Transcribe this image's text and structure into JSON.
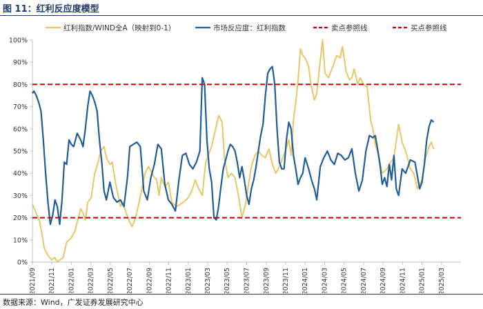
{
  "figure": {
    "title": "图 11：红利反应度模型",
    "source": "数据来源：Wind，广发证券发展研究中心"
  },
  "colors": {
    "dividend_line": "#e8c668",
    "reaction_line": "#1f5c99",
    "reference_lines": "#c00000",
    "axis": "#bfbfbf",
    "text": "#333333"
  },
  "chart_data": {
    "type": "line",
    "title": "",
    "xlabel": "",
    "ylabel": "",
    "ylim": [
      0,
      100
    ],
    "y_ticks": [
      0,
      10,
      20,
      30,
      40,
      50,
      60,
      70,
      80,
      90,
      100
    ],
    "y_tick_labels": [
      "0%",
      "10%",
      "20%",
      "30%",
      "40%",
      "50%",
      "60%",
      "70%",
      "80%",
      "90%",
      "100%"
    ],
    "x_range": [
      2021.667,
      2025.333
    ],
    "x_ticks": [
      2021.667,
      2021.833,
      2022.0,
      2022.167,
      2022.333,
      2022.5,
      2022.667,
      2022.833,
      2023.0,
      2023.167,
      2023.333,
      2023.5,
      2023.667,
      2023.833,
      2024.0,
      2024.167,
      2024.333,
      2024.5,
      2024.667,
      2024.833,
      2025.0,
      2025.167
    ],
    "x_tick_labels": [
      "2021/09",
      "2021/11",
      "2022/01",
      "2022/03",
      "2022/05",
      "2022/07",
      "2022/09",
      "2022/11",
      "2023/01",
      "2023/03",
      "2023/05",
      "2023/07",
      "2023/09",
      "2023/11",
      "2024/01",
      "2024/03",
      "2024/05",
      "2024/07",
      "2024/09",
      "2024/11",
      "2025/01",
      "2025/03"
    ],
    "legend_position": "top",
    "series": [
      {
        "name": "红利指数/WIND全A（映射到0-1）",
        "color": "#e8c668",
        "points": [
          [
            2021.667,
            26
          ],
          [
            2021.7,
            22
          ],
          [
            2021.73,
            18
          ],
          [
            2021.75,
            12
          ],
          [
            2021.77,
            6
          ],
          [
            2021.8,
            3
          ],
          [
            2021.83,
            1
          ],
          [
            2021.86,
            2
          ],
          [
            2021.88,
            0
          ],
          [
            2021.9,
            1
          ],
          [
            2021.93,
            2
          ],
          [
            2021.96,
            9
          ],
          [
            2022.0,
            11
          ],
          [
            2022.03,
            14
          ],
          [
            2022.06,
            20
          ],
          [
            2022.08,
            24
          ],
          [
            2022.1,
            22
          ],
          [
            2022.12,
            19
          ],
          [
            2022.14,
            27
          ],
          [
            2022.17,
            29
          ],
          [
            2022.2,
            40
          ],
          [
            2022.23,
            45
          ],
          [
            2022.25,
            50
          ],
          [
            2022.28,
            52
          ],
          [
            2022.3,
            47
          ],
          [
            2022.33,
            44
          ],
          [
            2022.35,
            45
          ],
          [
            2022.38,
            35
          ],
          [
            2022.4,
            30
          ],
          [
            2022.42,
            25
          ],
          [
            2022.44,
            27
          ],
          [
            2022.47,
            22
          ],
          [
            2022.5,
            18
          ],
          [
            2022.52,
            16
          ],
          [
            2022.55,
            20
          ],
          [
            2022.58,
            27
          ],
          [
            2022.6,
            32
          ],
          [
            2022.63,
            40
          ],
          [
            2022.66,
            43
          ],
          [
            2022.7,
            39
          ],
          [
            2022.73,
            37
          ],
          [
            2022.75,
            30
          ],
          [
            2022.77,
            38
          ],
          [
            2022.8,
            34
          ],
          [
            2022.83,
            36
          ],
          [
            2022.86,
            27
          ],
          [
            2022.9,
            25
          ],
          [
            2022.93,
            26
          ],
          [
            2022.96,
            27
          ],
          [
            2023.0,
            29
          ],
          [
            2023.03,
            32
          ],
          [
            2023.06,
            37
          ],
          [
            2023.09,
            33
          ],
          [
            2023.12,
            30
          ],
          [
            2023.15,
            45
          ],
          [
            2023.17,
            48
          ],
          [
            2023.2,
            52
          ],
          [
            2023.23,
            59
          ],
          [
            2023.26,
            66
          ],
          [
            2023.29,
            63
          ],
          [
            2023.31,
            47
          ],
          [
            2023.34,
            38
          ],
          [
            2023.37,
            40
          ],
          [
            2023.4,
            38
          ],
          [
            2023.43,
            30
          ],
          [
            2023.46,
            20
          ],
          [
            2023.49,
            26
          ],
          [
            2023.51,
            33
          ],
          [
            2023.54,
            43
          ],
          [
            2023.57,
            48
          ],
          [
            2023.6,
            50
          ],
          [
            2023.63,
            48
          ],
          [
            2023.66,
            47
          ],
          [
            2023.69,
            51
          ],
          [
            2023.72,
            44
          ],
          [
            2023.75,
            40
          ],
          [
            2023.78,
            43
          ],
          [
            2023.81,
            47
          ],
          [
            2023.83,
            50
          ],
          [
            2023.86,
            55
          ],
          [
            2023.88,
            48
          ],
          [
            2023.9,
            64
          ],
          [
            2023.92,
            72
          ],
          [
            2023.94,
            82
          ],
          [
            2023.96,
            96
          ],
          [
            2023.98,
            93
          ],
          [
            2024.0,
            92
          ],
          [
            2024.03,
            88
          ],
          [
            2024.05,
            80
          ],
          [
            2024.08,
            73
          ],
          [
            2024.1,
            76
          ],
          [
            2024.12,
            86
          ],
          [
            2024.15,
            100
          ],
          [
            2024.17,
            85
          ],
          [
            2024.2,
            83
          ],
          [
            2024.23,
            87
          ],
          [
            2024.25,
            90
          ],
          [
            2024.27,
            93
          ],
          [
            2024.3,
            92
          ],
          [
            2024.32,
            97
          ],
          [
            2024.35,
            86
          ],
          [
            2024.38,
            82
          ],
          [
            2024.4,
            83
          ],
          [
            2024.42,
            87
          ],
          [
            2024.45,
            80
          ],
          [
            2024.47,
            83
          ],
          [
            2024.5,
            80
          ],
          [
            2024.53,
            79
          ],
          [
            2024.56,
            64
          ],
          [
            2024.58,
            60
          ],
          [
            2024.6,
            53
          ],
          [
            2024.63,
            48
          ],
          [
            2024.66,
            40
          ],
          [
            2024.7,
            42
          ],
          [
            2024.73,
            45
          ],
          [
            2024.76,
            47
          ],
          [
            2024.8,
            62
          ],
          [
            2024.83,
            54
          ],
          [
            2024.86,
            50
          ],
          [
            2024.9,
            42
          ],
          [
            2024.93,
            40
          ],
          [
            2024.96,
            33
          ],
          [
            2025.0,
            37
          ],
          [
            2025.03,
            47
          ],
          [
            2025.06,
            52
          ],
          [
            2025.08,
            54
          ],
          [
            2025.1,
            51
          ]
        ]
      },
      {
        "name": "市场反应度：红利指数",
        "color": "#1f5c99",
        "points": [
          [
            2021.667,
            76
          ],
          [
            2021.68,
            77
          ],
          [
            2021.7,
            75
          ],
          [
            2021.72,
            72
          ],
          [
            2021.74,
            68
          ],
          [
            2021.76,
            55
          ],
          [
            2021.78,
            40
          ],
          [
            2021.8,
            27
          ],
          [
            2021.82,
            17
          ],
          [
            2021.84,
            21
          ],
          [
            2021.86,
            28
          ],
          [
            2021.88,
            25
          ],
          [
            2021.9,
            17
          ],
          [
            2021.92,
            28
          ],
          [
            2021.94,
            45
          ],
          [
            2021.96,
            44
          ],
          [
            2021.98,
            55
          ],
          [
            2022.0,
            53
          ],
          [
            2022.02,
            52
          ],
          [
            2022.05,
            58
          ],
          [
            2022.08,
            55
          ],
          [
            2022.1,
            52
          ],
          [
            2022.12,
            60
          ],
          [
            2022.14,
            70
          ],
          [
            2022.16,
            77
          ],
          [
            2022.18,
            75
          ],
          [
            2022.2,
            72
          ],
          [
            2022.22,
            68
          ],
          [
            2022.24,
            55
          ],
          [
            2022.26,
            45
          ],
          [
            2022.28,
            32
          ],
          [
            2022.3,
            28
          ],
          [
            2022.33,
            36
          ],
          [
            2022.36,
            29
          ],
          [
            2022.39,
            27
          ],
          [
            2022.42,
            28
          ],
          [
            2022.45,
            25
          ],
          [
            2022.48,
            38
          ],
          [
            2022.5,
            52
          ],
          [
            2022.53,
            53
          ],
          [
            2022.56,
            54
          ],
          [
            2022.59,
            52
          ],
          [
            2022.62,
            32
          ],
          [
            2022.65,
            28
          ],
          [
            2022.68,
            38
          ],
          [
            2022.71,
            44
          ],
          [
            2022.74,
            53
          ],
          [
            2022.77,
            51
          ],
          [
            2022.8,
            35
          ],
          [
            2022.83,
            28
          ],
          [
            2022.86,
            26
          ],
          [
            2022.89,
            23
          ],
          [
            2022.92,
            37
          ],
          [
            2022.95,
            48
          ],
          [
            2022.98,
            49
          ],
          [
            2023.01,
            44
          ],
          [
            2023.04,
            42
          ],
          [
            2023.07,
            45
          ],
          [
            2023.1,
            50
          ],
          [
            2023.12,
            83
          ],
          [
            2023.14,
            80
          ],
          [
            2023.16,
            55
          ],
          [
            2023.18,
            42
          ],
          [
            2023.2,
            36
          ],
          [
            2023.22,
            20
          ],
          [
            2023.24,
            19
          ],
          [
            2023.26,
            25
          ],
          [
            2023.28,
            34
          ],
          [
            2023.3,
            42
          ],
          [
            2023.32,
            46
          ],
          [
            2023.34,
            50
          ],
          [
            2023.36,
            53
          ],
          [
            2023.38,
            52
          ],
          [
            2023.4,
            50
          ],
          [
            2023.42,
            45
          ],
          [
            2023.44,
            38
          ],
          [
            2023.46,
            43
          ],
          [
            2023.48,
            37
          ],
          [
            2023.5,
            30
          ],
          [
            2023.52,
            26
          ],
          [
            2023.54,
            33
          ],
          [
            2023.56,
            37
          ],
          [
            2023.58,
            43
          ],
          [
            2023.6,
            50
          ],
          [
            2023.62,
            57
          ],
          [
            2023.64,
            62
          ],
          [
            2023.66,
            75
          ],
          [
            2023.68,
            85
          ],
          [
            2023.7,
            87
          ],
          [
            2023.72,
            88
          ],
          [
            2023.74,
            80
          ],
          [
            2023.76,
            60
          ],
          [
            2023.78,
            45
          ],
          [
            2023.8,
            42
          ],
          [
            2023.82,
            42
          ],
          [
            2023.84,
            55
          ],
          [
            2023.86,
            63
          ],
          [
            2023.88,
            60
          ],
          [
            2023.9,
            48
          ],
          [
            2023.92,
            42
          ],
          [
            2023.94,
            35
          ],
          [
            2023.96,
            38
          ],
          [
            2023.98,
            40
          ],
          [
            2024.0,
            47
          ],
          [
            2024.03,
            42
          ],
          [
            2024.06,
            36
          ],
          [
            2024.08,
            33
          ],
          [
            2024.1,
            28
          ],
          [
            2024.13,
            43
          ],
          [
            2024.16,
            47
          ],
          [
            2024.19,
            50
          ],
          [
            2024.22,
            46
          ],
          [
            2024.25,
            44
          ],
          [
            2024.28,
            49
          ],
          [
            2024.31,
            48
          ],
          [
            2024.34,
            46
          ],
          [
            2024.37,
            47
          ],
          [
            2024.4,
            51
          ],
          [
            2024.43,
            40
          ],
          [
            2024.46,
            32
          ],
          [
            2024.49,
            37
          ],
          [
            2024.52,
            50
          ],
          [
            2024.55,
            57
          ],
          [
            2024.58,
            56
          ],
          [
            2024.6,
            57
          ],
          [
            2024.62,
            51
          ],
          [
            2024.64,
            44
          ],
          [
            2024.66,
            35
          ],
          [
            2024.68,
            38
          ],
          [
            2024.7,
            34
          ],
          [
            2024.72,
            44
          ],
          [
            2024.74,
            37
          ],
          [
            2024.76,
            48
          ],
          [
            2024.78,
            33
          ],
          [
            2024.8,
            30
          ],
          [
            2024.83,
            42
          ],
          [
            2024.86,
            40
          ],
          [
            2024.9,
            46
          ],
          [
            2024.94,
            45
          ],
          [
            2024.98,
            33
          ],
          [
            2025.0,
            36
          ],
          [
            2025.02,
            44
          ],
          [
            2025.04,
            55
          ],
          [
            2025.06,
            61
          ],
          [
            2025.08,
            64
          ],
          [
            2025.1,
            63
          ]
        ]
      },
      {
        "name": "卖点参照线",
        "color": "#c00000",
        "style": "dashed",
        "value": 80
      },
      {
        "name": "买点参照线",
        "color": "#c00000",
        "style": "dashed",
        "value": 20
      }
    ]
  }
}
